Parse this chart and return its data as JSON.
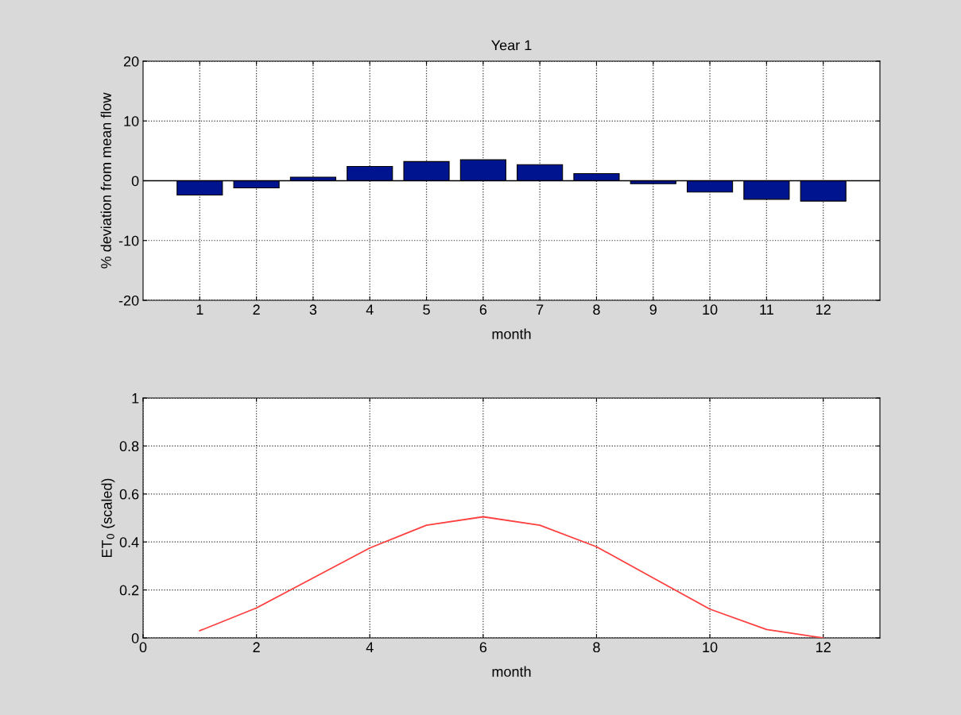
{
  "chart_data": [
    {
      "type": "bar",
      "title": "Year 1",
      "xlabel": "month",
      "ylabel": "% deviation from mean flow",
      "categories": [
        "1",
        "2",
        "3",
        "4",
        "5",
        "6",
        "7",
        "8",
        "9",
        "10",
        "11",
        "12"
      ],
      "values": [
        -2.4,
        -1.2,
        0.6,
        2.4,
        3.2,
        3.5,
        2.7,
        1.2,
        -0.5,
        -1.9,
        -3.1,
        -3.4
      ],
      "color": "#001490",
      "ylim": [
        -20,
        20
      ],
      "yticks": [
        -20,
        -10,
        0,
        10,
        20
      ],
      "grid": true,
      "ref_lines": [
        {
          "axis": "y",
          "value": 0,
          "color": "#000000"
        }
      ]
    },
    {
      "type": "line",
      "xlabel": "month",
      "ylabel": "ET$_{0}$ (scaled)",
      "series": [
        {
          "color": "#ff4040",
          "x": [
            1,
            2,
            3,
            4,
            5,
            6,
            7,
            8,
            9,
            10,
            11,
            12
          ],
          "values": [
            0.03,
            0.125,
            0.25,
            0.375,
            0.47,
            0.505,
            0.47,
            0.38,
            0.25,
            0.12,
            0.035,
            0.0
          ]
        }
      ],
      "xlim": [
        0,
        13
      ],
      "xticks": [
        0,
        2,
        4,
        6,
        8,
        10,
        12
      ],
      "ylim": [
        0,
        1
      ],
      "yticks": [
        0,
        0.2,
        0.4,
        0.6,
        0.8,
        1
      ],
      "grid": true,
      "line_style": "solid"
    }
  ]
}
